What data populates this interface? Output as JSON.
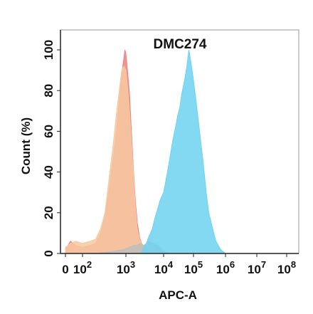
{
  "chart_data": {
    "type": "area",
    "title": "DMC274",
    "xlabel": "APC-A",
    "ylabel": "Count  (%)",
    "x_scale": "biexponential",
    "x_ticks": [
      {
        "value": 0,
        "base": "0",
        "exp": ""
      },
      {
        "value": 100,
        "base": "10",
        "exp": "2"
      },
      {
        "value": 1000,
        "base": "10",
        "exp": "3"
      },
      {
        "value": 10000,
        "base": "10",
        "exp": "4"
      },
      {
        "value": 100000,
        "base": "10",
        "exp": "5"
      },
      {
        "value": 1000000,
        "base": "10",
        "exp": "6"
      },
      {
        "value": 10000000,
        "base": "10",
        "exp": "7"
      },
      {
        "value": 100000000,
        "base": "10",
        "exp": "8"
      }
    ],
    "y_ticks": [
      0,
      20,
      40,
      60,
      80,
      100
    ],
    "ylim": [
      0,
      110
    ],
    "grid": false,
    "series": [
      {
        "color": "#f08080",
        "points": [
          [
            0,
            2
          ],
          [
            30,
            6
          ],
          [
            60,
            4
          ],
          [
            100,
            3
          ],
          [
            150,
            4
          ],
          [
            200,
            5
          ],
          [
            260,
            10
          ],
          [
            330,
            18
          ],
          [
            400,
            30
          ],
          [
            500,
            45
          ],
          [
            600,
            60
          ],
          [
            700,
            75
          ],
          [
            800,
            88
          ],
          [
            900,
            96
          ],
          [
            950,
            100
          ],
          [
            1000,
            98
          ],
          [
            1100,
            90
          ],
          [
            1250,
            78
          ],
          [
            1400,
            60
          ],
          [
            1600,
            40
          ],
          [
            1800,
            25
          ],
          [
            2000,
            15
          ],
          [
            2300,
            8
          ],
          [
            2700,
            4
          ],
          [
            3200,
            2
          ],
          [
            4000,
            1
          ],
          [
            5000,
            0
          ]
        ]
      },
      {
        "color": "#f6c9a0",
        "points": [
          [
            0,
            3
          ],
          [
            30,
            5
          ],
          [
            60,
            6
          ],
          [
            100,
            5
          ],
          [
            150,
            6
          ],
          [
            200,
            7
          ],
          [
            260,
            12
          ],
          [
            330,
            20
          ],
          [
            400,
            35
          ],
          [
            500,
            52
          ],
          [
            600,
            68
          ],
          [
            700,
            80
          ],
          [
            800,
            90
          ],
          [
            900,
            92
          ],
          [
            1000,
            90
          ],
          [
            1100,
            82
          ],
          [
            1250,
            70
          ],
          [
            1400,
            55
          ],
          [
            1600,
            38
          ],
          [
            1800,
            22
          ],
          [
            2000,
            12
          ],
          [
            2300,
            7
          ],
          [
            2700,
            4
          ],
          [
            3200,
            2
          ],
          [
            4000,
            1
          ],
          [
            5000,
            0
          ]
        ]
      },
      {
        "color": "#bdbdbd",
        "points": [
          [
            200,
            0
          ],
          [
            500,
            1
          ],
          [
            900,
            2
          ],
          [
            1200,
            3
          ],
          [
            1600,
            4
          ],
          [
            2000,
            4
          ],
          [
            2500,
            5
          ],
          [
            3000,
            4
          ],
          [
            3500,
            5
          ],
          [
            4000,
            6
          ],
          [
            5000,
            5
          ],
          [
            6000,
            5
          ],
          [
            8000,
            3
          ],
          [
            10000,
            1
          ],
          [
            15000,
            0
          ]
        ]
      },
      {
        "color": "#6ed2f0",
        "points": [
          [
            2500,
            0
          ],
          [
            3000,
            3
          ],
          [
            3500,
            5
          ],
          [
            4000,
            8
          ],
          [
            5000,
            12
          ],
          [
            6000,
            18
          ],
          [
            7000,
            22
          ],
          [
            8000,
            26
          ],
          [
            10000,
            30
          ],
          [
            12000,
            36
          ],
          [
            15000,
            44
          ],
          [
            20000,
            55
          ],
          [
            25000,
            62
          ],
          [
            30000,
            68
          ],
          [
            35000,
            72
          ],
          [
            40000,
            78
          ],
          [
            50000,
            85
          ],
          [
            60000,
            92
          ],
          [
            70000,
            100
          ],
          [
            80000,
            95
          ],
          [
            90000,
            90
          ],
          [
            100000,
            85
          ],
          [
            120000,
            75
          ],
          [
            150000,
            62
          ],
          [
            200000,
            45
          ],
          [
            250000,
            30
          ],
          [
            300000,
            20
          ],
          [
            400000,
            12
          ],
          [
            500000,
            6
          ],
          [
            700000,
            2
          ],
          [
            1000000,
            0
          ]
        ]
      }
    ]
  }
}
